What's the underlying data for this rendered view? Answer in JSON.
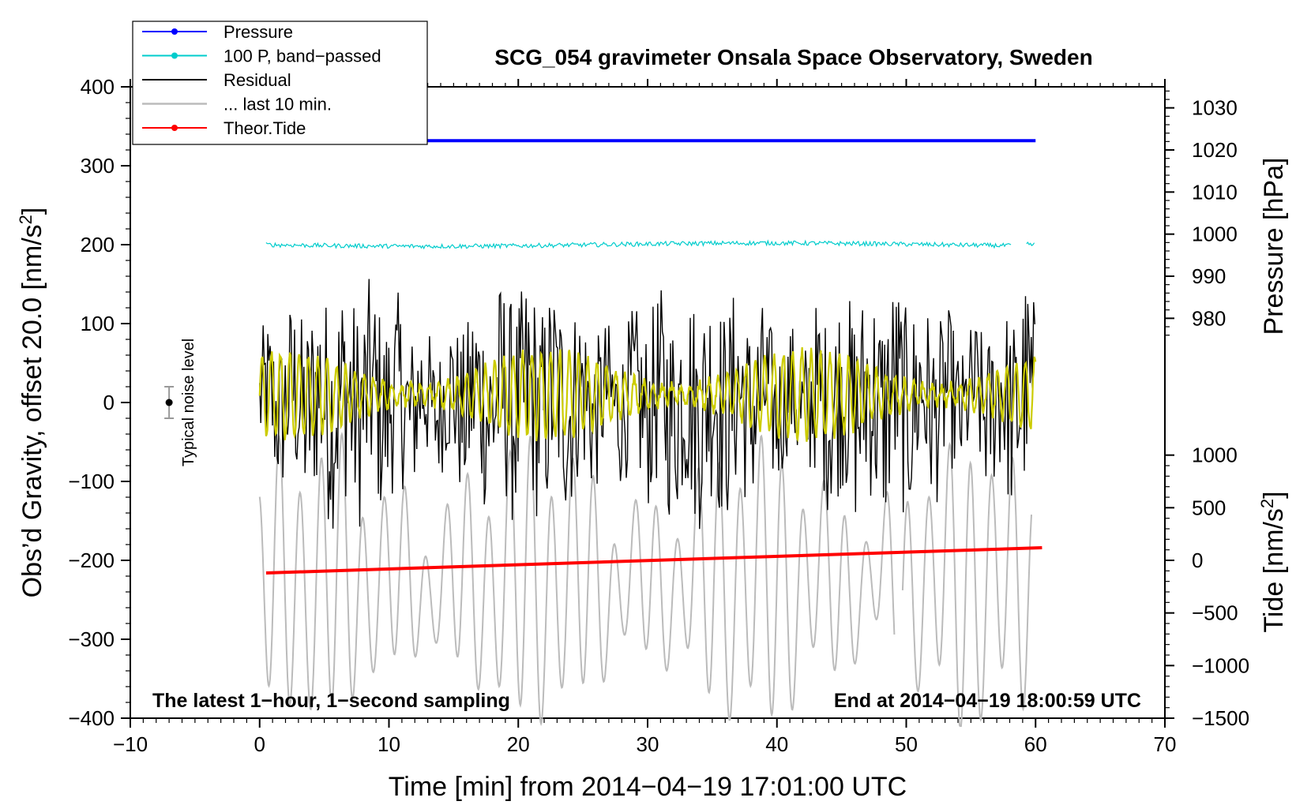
{
  "chart_data": {
    "type": "line",
    "title": "SCG_054 gravimeter Onsala Space Observatory, Sweden",
    "xlabel": "Time [min] from 2014−04−19 17:01:00 UTC",
    "ylabel": "Obs’d Gravity, offset 20.0 [nm/s",
    "ylabel_sup": "2",
    "ylabel_end": "]",
    "y2label": "Pressure [hPa]",
    "y3label": "Tide [nm/s",
    "y3label_sup": "2",
    "y3label_end": "]",
    "xlim": [
      -10,
      70
    ],
    "ylim": [
      -400,
      400
    ],
    "pressure_lim": [
      960,
      1035
    ],
    "tide_lim": [
      -1500,
      1500
    ],
    "x_ticks": [
      "−10",
      "0",
      "10",
      "20",
      "30",
      "40",
      "50",
      "60",
      "70"
    ],
    "x_tick_values": [
      -10,
      0,
      10,
      20,
      30,
      40,
      50,
      60,
      70
    ],
    "y_ticks": [
      "400",
      "300",
      "200",
      "100",
      "0",
      "−100",
      "−200",
      "−300",
      "−400"
    ],
    "y_tick_values": [
      400,
      300,
      200,
      100,
      0,
      -100,
      -200,
      -300,
      -400
    ],
    "pressure_ticks": [
      "1030",
      "1020",
      "1010",
      "1000",
      "990",
      "980"
    ],
    "pressure_tick_values": [
      1030,
      1020,
      1010,
      1000,
      990,
      980
    ],
    "tide_ticks": [
      "1000",
      "500",
      "0",
      "−500",
      "−1000",
      "−1500"
    ],
    "tide_tick_values": [
      1000,
      500,
      0,
      -500,
      -1000,
      -1500
    ],
    "annotations": {
      "bottom_left": "The latest 1−hour, 1−second sampling",
      "bottom_right": "End at 2014−04−19 18:00:59 UTC",
      "noise_label": "Typical noise level"
    },
    "noise_bar": {
      "x": -7,
      "center": 0,
      "half_range": 20
    },
    "legend": [
      {
        "label": "Pressure",
        "color": "#0000ff",
        "marker": true
      },
      {
        "label": "100 P, band−passed",
        "color": "#00cccc",
        "marker": true
      },
      {
        "label": "Residual",
        "color": "#000000",
        "marker": false
      },
      {
        "label": "... last 10 min.",
        "color": "#bbbbbb",
        "marker": false
      },
      {
        "label": "Theor.Tide",
        "color": "#ff0000",
        "marker": true
      }
    ],
    "series": [
      {
        "name": "Pressure",
        "color": "#0000ff",
        "axis": "pressure",
        "x_range": [
          0,
          60
        ],
        "values_start": 1022.2,
        "values_end": 1022.2
      },
      {
        "name": "100 P, band−passed",
        "color": "#00cccc",
        "axis": "gravity",
        "x_range": [
          0,
          60
        ],
        "level": 200,
        "amplitude": 4
      },
      {
        "name": "Residual",
        "color": "#000000",
        "axis": "gravity",
        "x_range": [
          0,
          60
        ],
        "level": 0,
        "amplitude": 170
      },
      {
        "name": "Residual (filtered)",
        "color": "#cccc00",
        "axis": "gravity",
        "x_range": [
          0,
          60
        ],
        "level": 10,
        "amplitude": 55
      },
      {
        "name": "... last 10 min.",
        "color": "#bbbbbb",
        "axis": "gravity",
        "x_range": [
          0,
          60
        ],
        "level": -230,
        "amplitude": 160
      },
      {
        "name": "Theor.Tide",
        "color": "#ff0000",
        "axis": "tide",
        "x_range": [
          0.5,
          60.5
        ],
        "values_start": -120,
        "values_end": 120
      }
    ]
  }
}
